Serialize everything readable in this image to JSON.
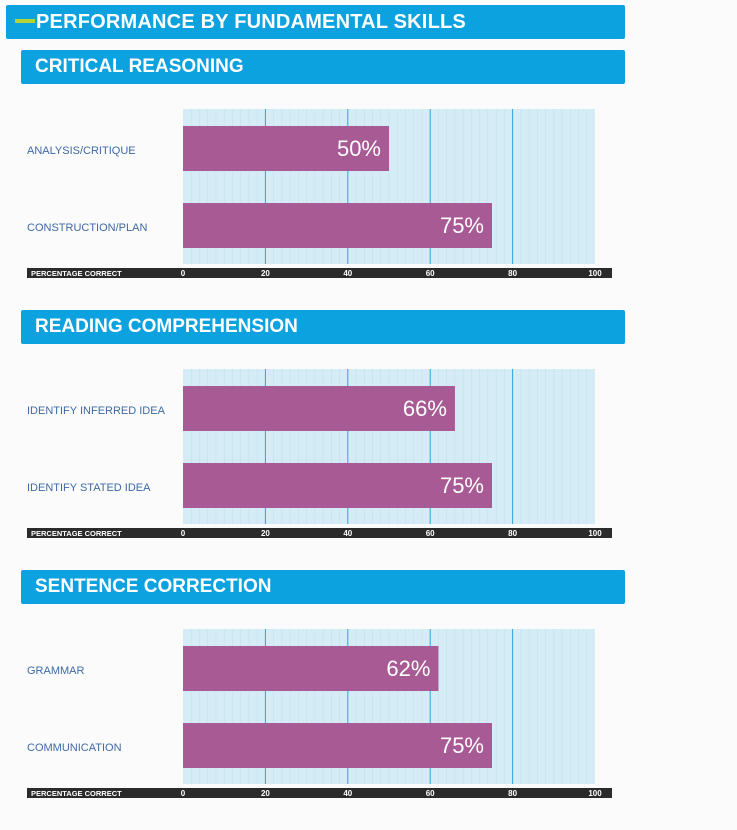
{
  "page_title": "PERFORMANCE BY FUNDAMENTAL SKILLS",
  "colors": {
    "header_bg": "#0ca1df",
    "accent": "#b5d334",
    "bar": "#a85a94",
    "plot_bg": "#d5ecf6",
    "axis_bar": "#2b2b2b",
    "label": "#3d6aa4"
  },
  "chart_data": [
    {
      "type": "bar",
      "orientation": "horizontal",
      "title": "CRITICAL REASONING",
      "categories": [
        "ANALYSIS/CRITIQUE",
        "CONSTRUCTION/PLAN"
      ],
      "values": [
        50,
        75
      ],
      "value_labels": [
        "50%",
        "75%"
      ],
      "xlabel": "PERCENTAGE CORRECT",
      "xlim": [
        0,
        100
      ],
      "xticks": [
        "0",
        "20",
        "40",
        "60",
        "80",
        "100"
      ]
    },
    {
      "type": "bar",
      "orientation": "horizontal",
      "title": "READING COMPREHENSION",
      "categories": [
        "IDENTIFY INFERRED IDEA",
        "IDENTIFY STATED IDEA"
      ],
      "values": [
        66,
        75
      ],
      "value_labels": [
        "66%",
        "75%"
      ],
      "xlabel": "PERCENTAGE CORRECT",
      "xlim": [
        0,
        100
      ],
      "xticks": [
        "0",
        "20",
        "40",
        "60",
        "80",
        "100"
      ]
    },
    {
      "type": "bar",
      "orientation": "horizontal",
      "title": "SENTENCE CORRECTION",
      "categories": [
        "GRAMMAR",
        "COMMUNICATION"
      ],
      "values": [
        62,
        75
      ],
      "value_labels": [
        "62%",
        "75%"
      ],
      "xlabel": "PERCENTAGE CORRECT",
      "xlim": [
        0,
        100
      ],
      "xticks": [
        "0",
        "20",
        "40",
        "60",
        "80",
        "100"
      ]
    }
  ]
}
